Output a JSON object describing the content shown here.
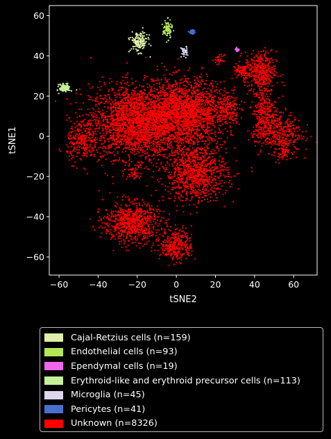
{
  "chart_data": {
    "type": "scatter",
    "title": "",
    "xlabel": "tSNE2",
    "ylabel": "tSNE1",
    "xlim": [
      -65,
      72
    ],
    "ylim": [
      -69,
      65
    ],
    "xticks": [
      -60,
      -40,
      -20,
      0,
      20,
      40,
      60
    ],
    "yticks": [
      -60,
      -40,
      -20,
      0,
      20,
      40,
      60
    ],
    "xtick_labels": [
      "−60",
      "−40",
      "−20",
      "0",
      "20",
      "40",
      "60"
    ],
    "ytick_labels": [
      "−60",
      "−40",
      "−20",
      "0",
      "20",
      "40",
      "60"
    ],
    "grid": false,
    "legend_placement": "below",
    "series": [
      {
        "name": "Cajal-Retzius cells (n=159)",
        "color": "#dff0a8",
        "count": 159,
        "clusters": [
          {
            "x": -19,
            "y": 47,
            "sx": 2.2,
            "sy": 2.5
          }
        ]
      },
      {
        "name": "Endothelial cells (n=93)",
        "color": "#b5e655",
        "count": 93,
        "clusters": [
          {
            "x": -4.5,
            "y": 53,
            "sx": 1.2,
            "sy": 2.2
          }
        ]
      },
      {
        "name": "Ependymal cells (n=19)",
        "color": "#ee66ee",
        "count": 19,
        "clusters": [
          {
            "x": 31,
            "y": 43,
            "sx": 0.4,
            "sy": 0.5
          }
        ]
      },
      {
        "name": "Erythroid-like and erythroid precursor cells (n=113)",
        "color": "#c4f09a",
        "count": 113,
        "clusters": [
          {
            "x": -57,
            "y": 24,
            "sx": 1.4,
            "sy": 1.0
          }
        ]
      },
      {
        "name": "Microglia (n=45)",
        "color": "#dcd8ee",
        "count": 45,
        "clusters": [
          {
            "x": 4,
            "y": 42,
            "sx": 0.8,
            "sy": 1.4
          }
        ]
      },
      {
        "name": "Pericytes (n=41)",
        "color": "#4a6fd0",
        "count": 41,
        "clusters": [
          {
            "x": 8,
            "y": 52,
            "sx": 0.8,
            "sy": 0.5
          }
        ]
      },
      {
        "name": "Unknown (n=8326)",
        "color": "#ff0000",
        "count": 8326,
        "clusters": [
          {
            "x": -20,
            "y": 7,
            "sx": 12,
            "sy": 9,
            "w": 0.3
          },
          {
            "x": 5,
            "y": 12,
            "sx": 10,
            "sy": 8,
            "w": 0.22
          },
          {
            "x": 10,
            "y": -18,
            "sx": 8,
            "sy": 7,
            "w": 0.12
          },
          {
            "x": -23,
            "y": -43,
            "sx": 7,
            "sy": 5,
            "w": 0.09
          },
          {
            "x": 0,
            "y": -54,
            "sx": 4,
            "sy": 4,
            "w": 0.04
          },
          {
            "x": 43,
            "y": 32,
            "sx": 4,
            "sy": 5,
            "w": 0.05
          },
          {
            "x": 45,
            "y": 12,
            "sx": 3,
            "sy": 7,
            "w": 0.035
          },
          {
            "x": 52,
            "y": 2,
            "sx": 6,
            "sy": 5,
            "w": 0.045
          },
          {
            "x": 26,
            "y": 14,
            "sx": 3,
            "sy": 4,
            "w": 0.02
          },
          {
            "x": -48,
            "y": -3,
            "sx": 4,
            "sy": 5,
            "w": 0.03
          },
          {
            "x": 33,
            "y": 32,
            "sx": 2,
            "sy": 2,
            "w": 0.008
          },
          {
            "x": -22,
            "y": -18,
            "sx": 2,
            "sy": 1.5,
            "w": 0.005
          },
          {
            "x": 55,
            "y": -7,
            "sx": 2,
            "sy": 2,
            "w": 0.008
          },
          {
            "x": 22,
            "y": 38,
            "sx": 1.2,
            "sy": 1.2,
            "w": 0.004
          }
        ]
      }
    ]
  }
}
